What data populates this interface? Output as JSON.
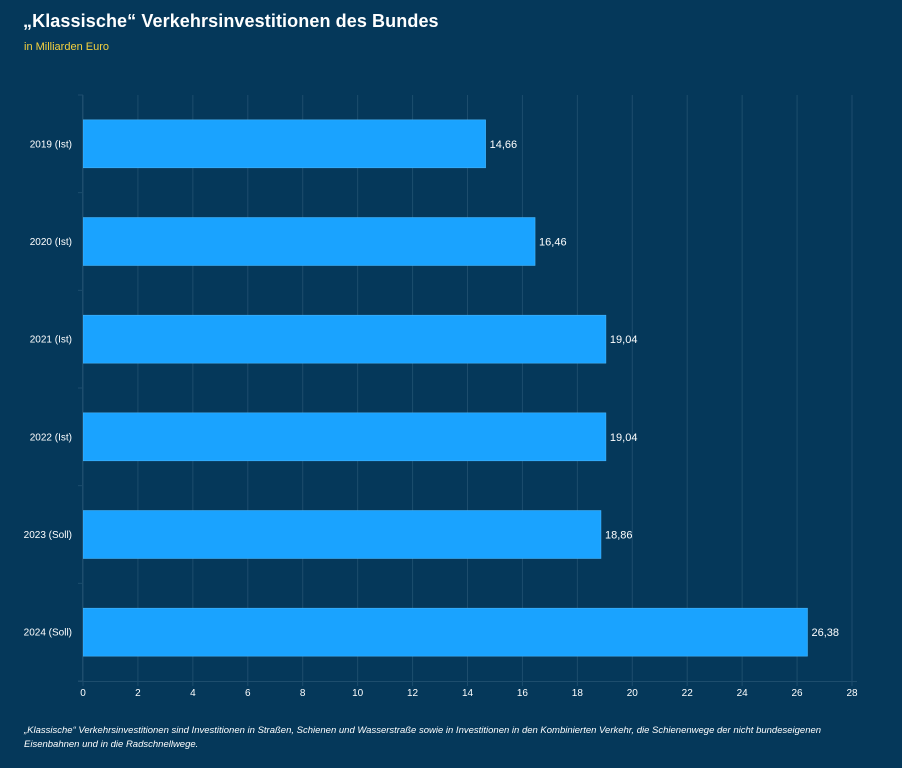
{
  "header": {
    "title": "„Klassische“ Verkehrsinvestitionen des Bundes",
    "subtitle": "in Milliarden Euro"
  },
  "footnote": "„Klassische“ Verkehrsinvestitionen sind Investitionen in Straßen, Schienen und Wasserstraße sowie in Investitionen in den Kombinierten Verkehr, die Schienenwege der nicht bundeseigenen Eisenbahnen und in die Radschnellwege.",
  "colors": {
    "background": "#05385a",
    "bar": "#1aa3ff",
    "grid": "#1d4d6d",
    "subtitle": "#f5d13e"
  },
  "chart_data": {
    "type": "bar",
    "orientation": "horizontal",
    "categories": [
      "2019 (Ist)",
      "2020 (Ist)",
      "2021 (Ist)",
      "2022 (Ist)",
      "2023 (Soll)",
      "2024 (Soll)"
    ],
    "values": [
      14.66,
      16.46,
      19.04,
      19.04,
      18.86,
      26.38
    ],
    "value_labels": [
      "14,66",
      "16,46",
      "19,04",
      "19,04",
      "18,86",
      "26,38"
    ],
    "xlim": [
      0,
      28
    ],
    "xticks": [
      0,
      2,
      4,
      6,
      8,
      10,
      12,
      14,
      16,
      18,
      20,
      22,
      24,
      26,
      28
    ],
    "grid": true
  }
}
